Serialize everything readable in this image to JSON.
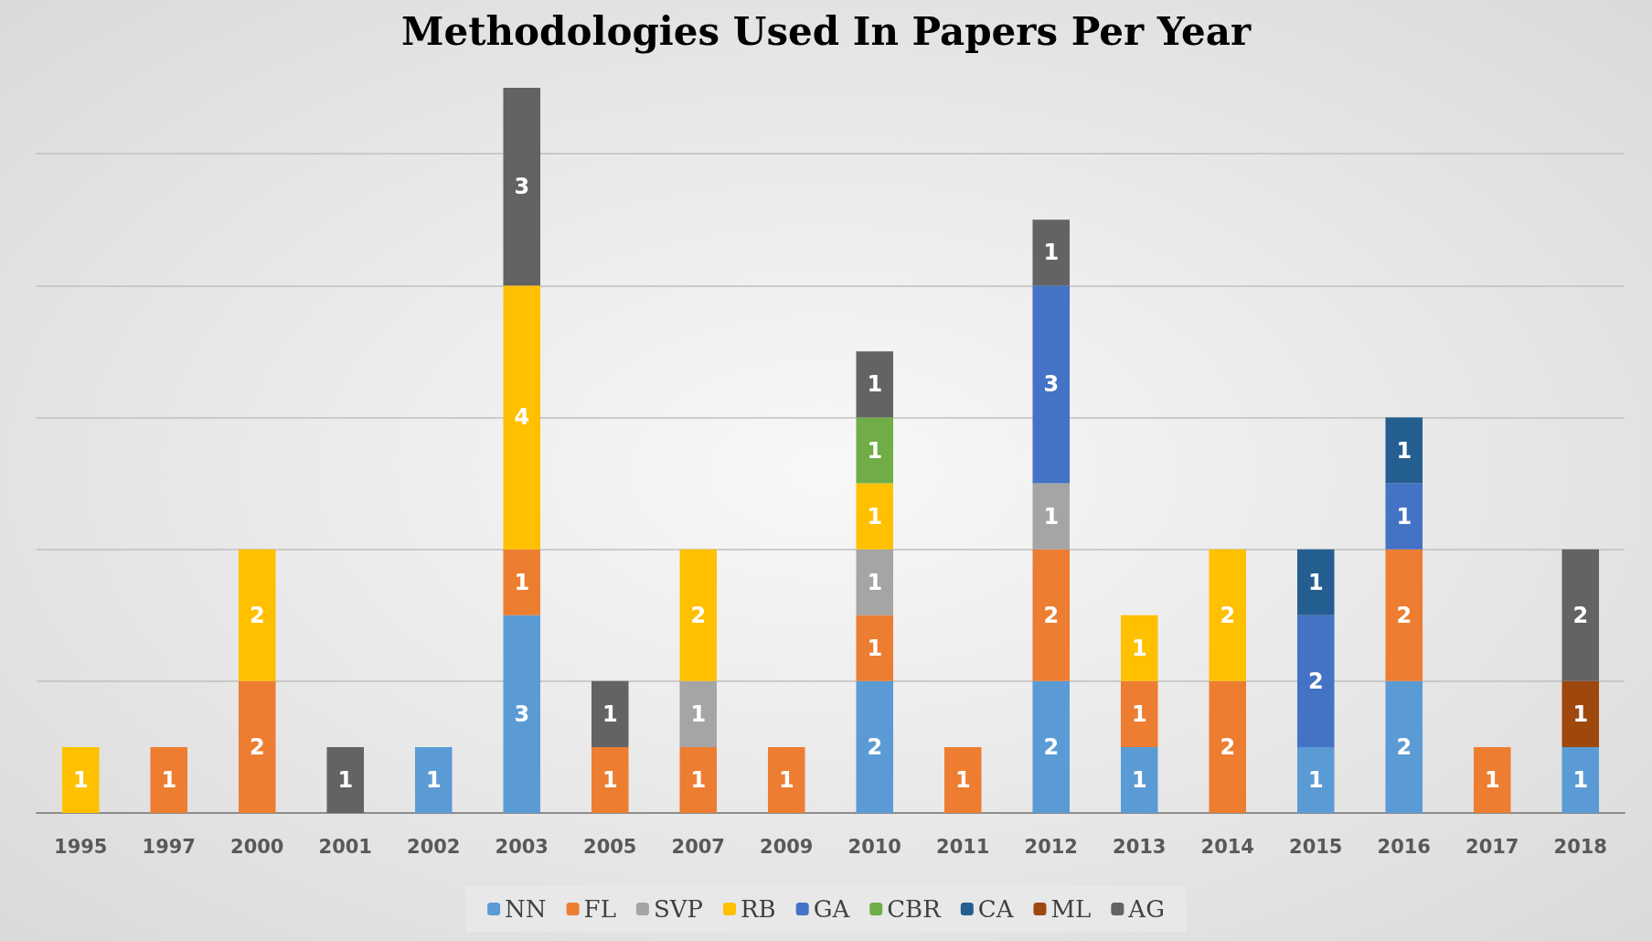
{
  "chart_data": {
    "type": "bar",
    "title": "Methodologies Used In Papers Per Year",
    "categories": [
      "1995",
      "1997",
      "2000",
      "2001",
      "2002",
      "2003",
      "2005",
      "2007",
      "2009",
      "2010",
      "2011",
      "2012",
      "2013",
      "2014",
      "2015",
      "2016",
      "2017",
      "2018"
    ],
    "stacked": true,
    "data_labels": true,
    "grid": "y",
    "legend": "bottom",
    "tick_labels": "x",
    "ylim": [
      0,
      11
    ],
    "yticks": [
      {
        "value": 0,
        "label": null
      },
      {
        "value": 2,
        "label": null
      },
      {
        "value": 4,
        "label": null
      },
      {
        "value": 6,
        "label": null
      },
      {
        "value": 8,
        "label": null
      },
      {
        "value": 10,
        "label": null
      }
    ],
    "series": [
      {
        "name": "NN",
        "color": "#5b9bd5",
        "values": [
          null,
          null,
          null,
          null,
          1,
          3,
          null,
          null,
          null,
          2,
          null,
          2,
          1,
          null,
          1,
          2,
          null,
          1
        ]
      },
      {
        "name": "FL",
        "color": "#ed7d31",
        "values": [
          null,
          1,
          2,
          null,
          null,
          1,
          1,
          1,
          1,
          1,
          1,
          2,
          1,
          2,
          null,
          2,
          1,
          null
        ]
      },
      {
        "name": "SVP",
        "color": "#a5a5a5",
        "values": [
          null,
          null,
          null,
          null,
          null,
          null,
          null,
          1,
          null,
          1,
          null,
          1,
          null,
          null,
          null,
          null,
          null,
          null
        ]
      },
      {
        "name": "RB",
        "color": "#ffc000",
        "values": [
          1,
          null,
          2,
          null,
          null,
          4,
          null,
          2,
          null,
          1,
          null,
          null,
          1,
          2,
          null,
          null,
          null,
          null
        ]
      },
      {
        "name": "GA",
        "color": "#4472c4",
        "values": [
          null,
          null,
          null,
          null,
          null,
          null,
          null,
          null,
          null,
          null,
          null,
          3,
          null,
          null,
          2,
          1,
          null,
          null
        ]
      },
      {
        "name": "CBR",
        "color": "#70ad47",
        "values": [
          null,
          null,
          null,
          null,
          null,
          null,
          null,
          null,
          null,
          1,
          null,
          null,
          null,
          null,
          null,
          null,
          null,
          null
        ]
      },
      {
        "name": "CA",
        "color": "#255e91",
        "values": [
          null,
          null,
          null,
          null,
          null,
          null,
          null,
          null,
          null,
          null,
          null,
          null,
          null,
          null,
          1,
          1,
          null,
          null
        ]
      },
      {
        "name": "ML",
        "color": "#9e480e",
        "values": [
          null,
          null,
          null,
          null,
          null,
          null,
          null,
          null,
          null,
          null,
          null,
          null,
          null,
          null,
          null,
          null,
          null,
          1
        ]
      },
      {
        "name": "AG",
        "color": "#636363",
        "values": [
          null,
          null,
          null,
          1,
          null,
          3,
          1,
          null,
          null,
          1,
          null,
          1,
          null,
          null,
          null,
          null,
          null,
          2
        ]
      }
    ]
  }
}
